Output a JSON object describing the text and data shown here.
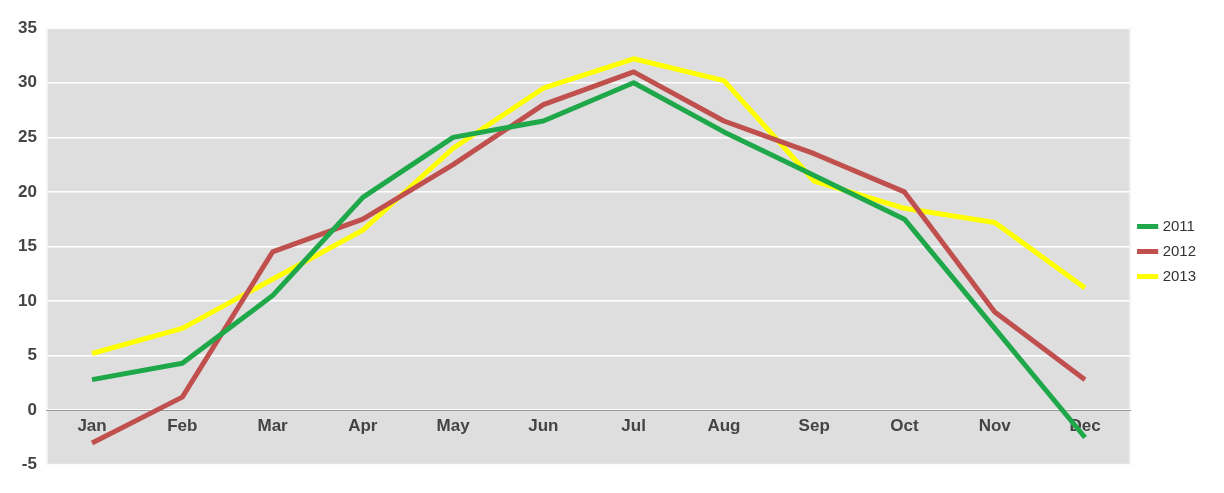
{
  "chart_data": {
    "type": "line",
    "categories": [
      "Jan",
      "Feb",
      "Mar",
      "Apr",
      "May",
      "Jun",
      "Jul",
      "Aug",
      "Sep",
      "Oct",
      "Nov",
      "Dec"
    ],
    "series": [
      {
        "name": "2011",
        "color": "#1fa84a",
        "values": [
          2.8,
          4.3,
          10.5,
          19.5,
          25,
          26.5,
          30,
          25.5,
          21.5,
          17.5,
          7.5,
          -2.5
        ]
      },
      {
        "name": "2012",
        "color": "#c0504d",
        "values": [
          -3,
          1.2,
          14.5,
          17.5,
          22.5,
          28,
          31,
          26.5,
          23.5,
          20,
          9,
          2.8
        ]
      },
      {
        "name": "2013",
        "color": "#ffff00",
        "values": [
          5.2,
          7.5,
          12,
          16.5,
          24,
          29.5,
          32.2,
          30.2,
          21,
          18.5,
          17.2,
          11.2
        ]
      }
    ],
    "ylim": [
      -5,
      35
    ],
    "yticks": [
      -5,
      0,
      5,
      10,
      15,
      20,
      25,
      30,
      35
    ],
    "grid": "y",
    "legend": "right",
    "marker": "none",
    "line_style": "solid"
  }
}
